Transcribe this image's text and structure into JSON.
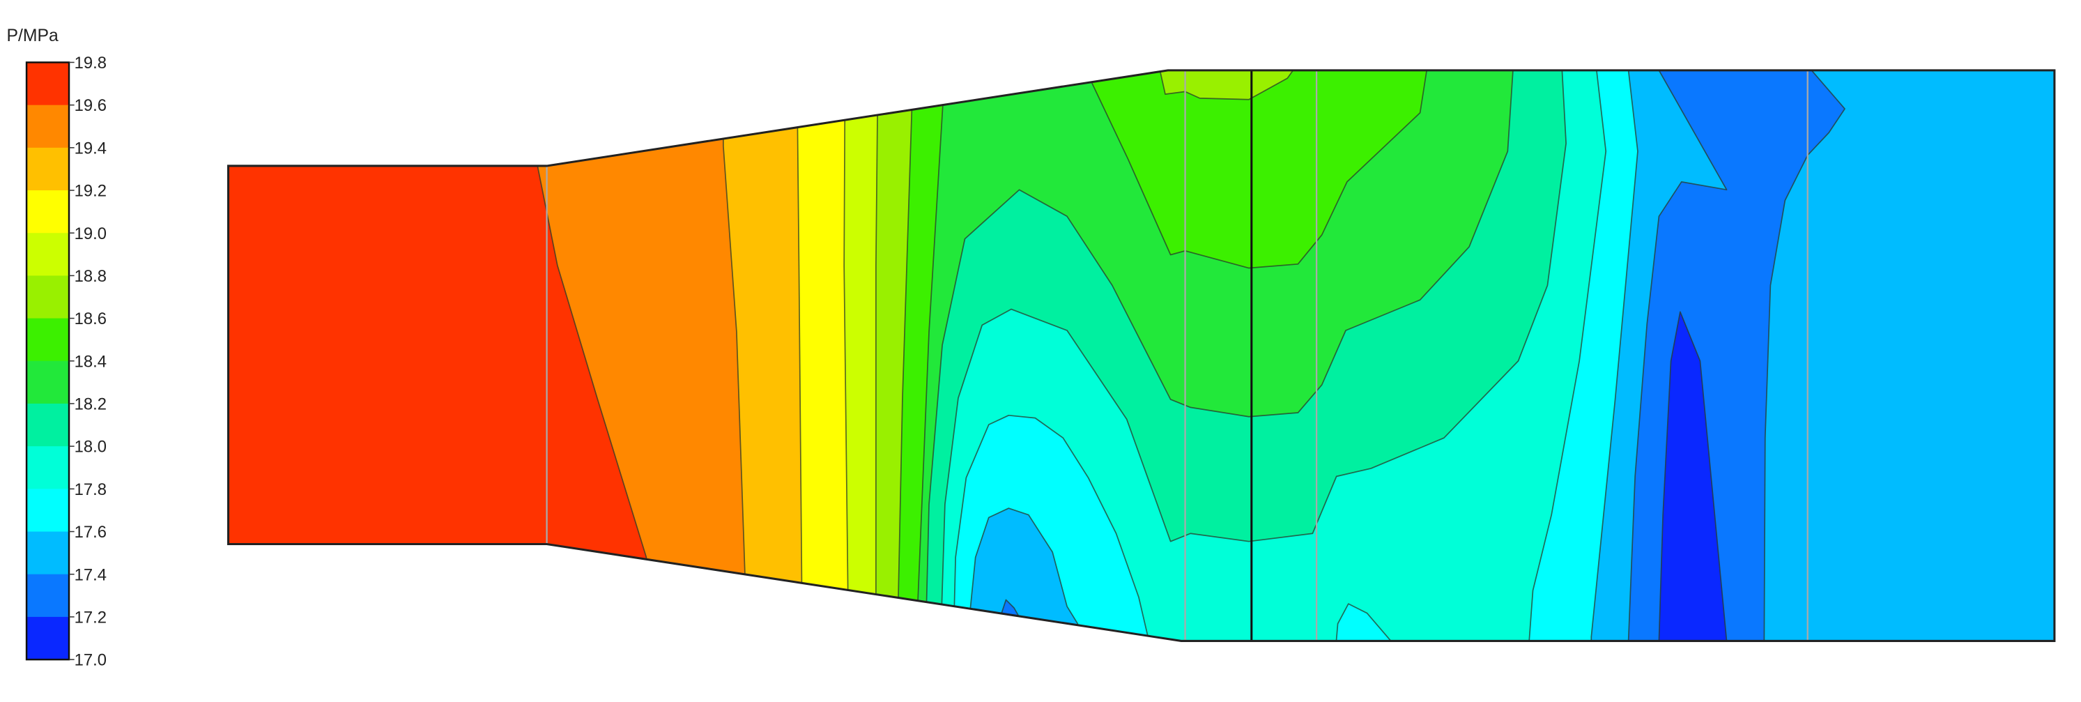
{
  "chart_data": {
    "type": "contour",
    "colorbar": {
      "title": "P/MPa",
      "range": [
        17.0,
        19.8
      ],
      "ticks": [
        "19.8",
        "19.6",
        "19.4",
        "19.2",
        "19.0",
        "18.8",
        "18.6",
        "18.4",
        "18.2",
        "18.0",
        "17.8",
        "17.6",
        "17.4",
        "17.2",
        "17.0"
      ],
      "band_colors_high_to_low": [
        "#FF3300",
        "#FF8800",
        "#FFC000",
        "#FFFF00",
        "#CCFF00",
        "#99F000",
        "#3CF000",
        "#22E83A",
        "#00F0A0",
        "#00FFD8",
        "#00FFFF",
        "#00BCFF",
        "#0A78FF",
        "#0A28FF"
      ]
    },
    "field": "pressure",
    "max_region": "inlet (left), 19.6–19.8",
    "min_region": "downstream trough, 17.0–17.2"
  }
}
